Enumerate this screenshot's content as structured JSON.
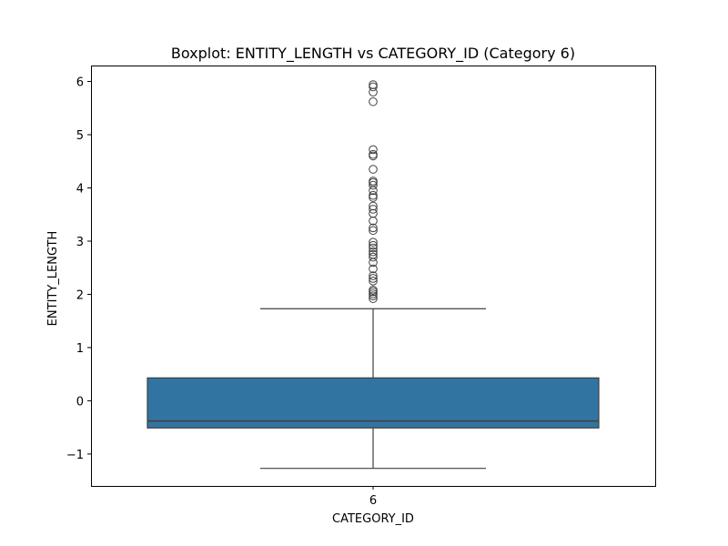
{
  "chart_data": {
    "type": "box",
    "title": "Boxplot: ENTITY_LENGTH vs CATEGORY_ID (Category 6)",
    "xlabel": "CATEGORY_ID",
    "ylabel": "ENTITY_LENGTH",
    "categories": [
      "6"
    ],
    "ylim": [
      -1.6,
      6.3
    ],
    "yticks": [
      -1,
      0,
      1,
      2,
      3,
      4,
      5,
      6
    ],
    "ytick_labels": [
      "−1",
      "0",
      "1",
      "2",
      "3",
      "4",
      "5",
      "6"
    ],
    "grid": false,
    "box_color": "#3274a1",
    "line_color": "#3f3f3f",
    "boxes": [
      {
        "category": "6",
        "whisker_low": -1.27,
        "q1": -0.51,
        "median": -0.38,
        "q3": 0.43,
        "whisker_high": 1.73,
        "outliers": [
          1.92,
          1.97,
          2.01,
          2.05,
          2.08,
          2.25,
          2.3,
          2.35,
          2.48,
          2.6,
          2.7,
          2.75,
          2.8,
          2.87,
          2.92,
          2.98,
          3.2,
          3.25,
          3.38,
          3.52,
          3.6,
          3.66,
          3.82,
          3.86,
          3.95,
          4.05,
          4.1,
          4.13,
          4.35,
          4.6,
          4.63,
          4.72,
          5.62,
          5.8,
          5.9,
          5.94
        ]
      }
    ]
  }
}
